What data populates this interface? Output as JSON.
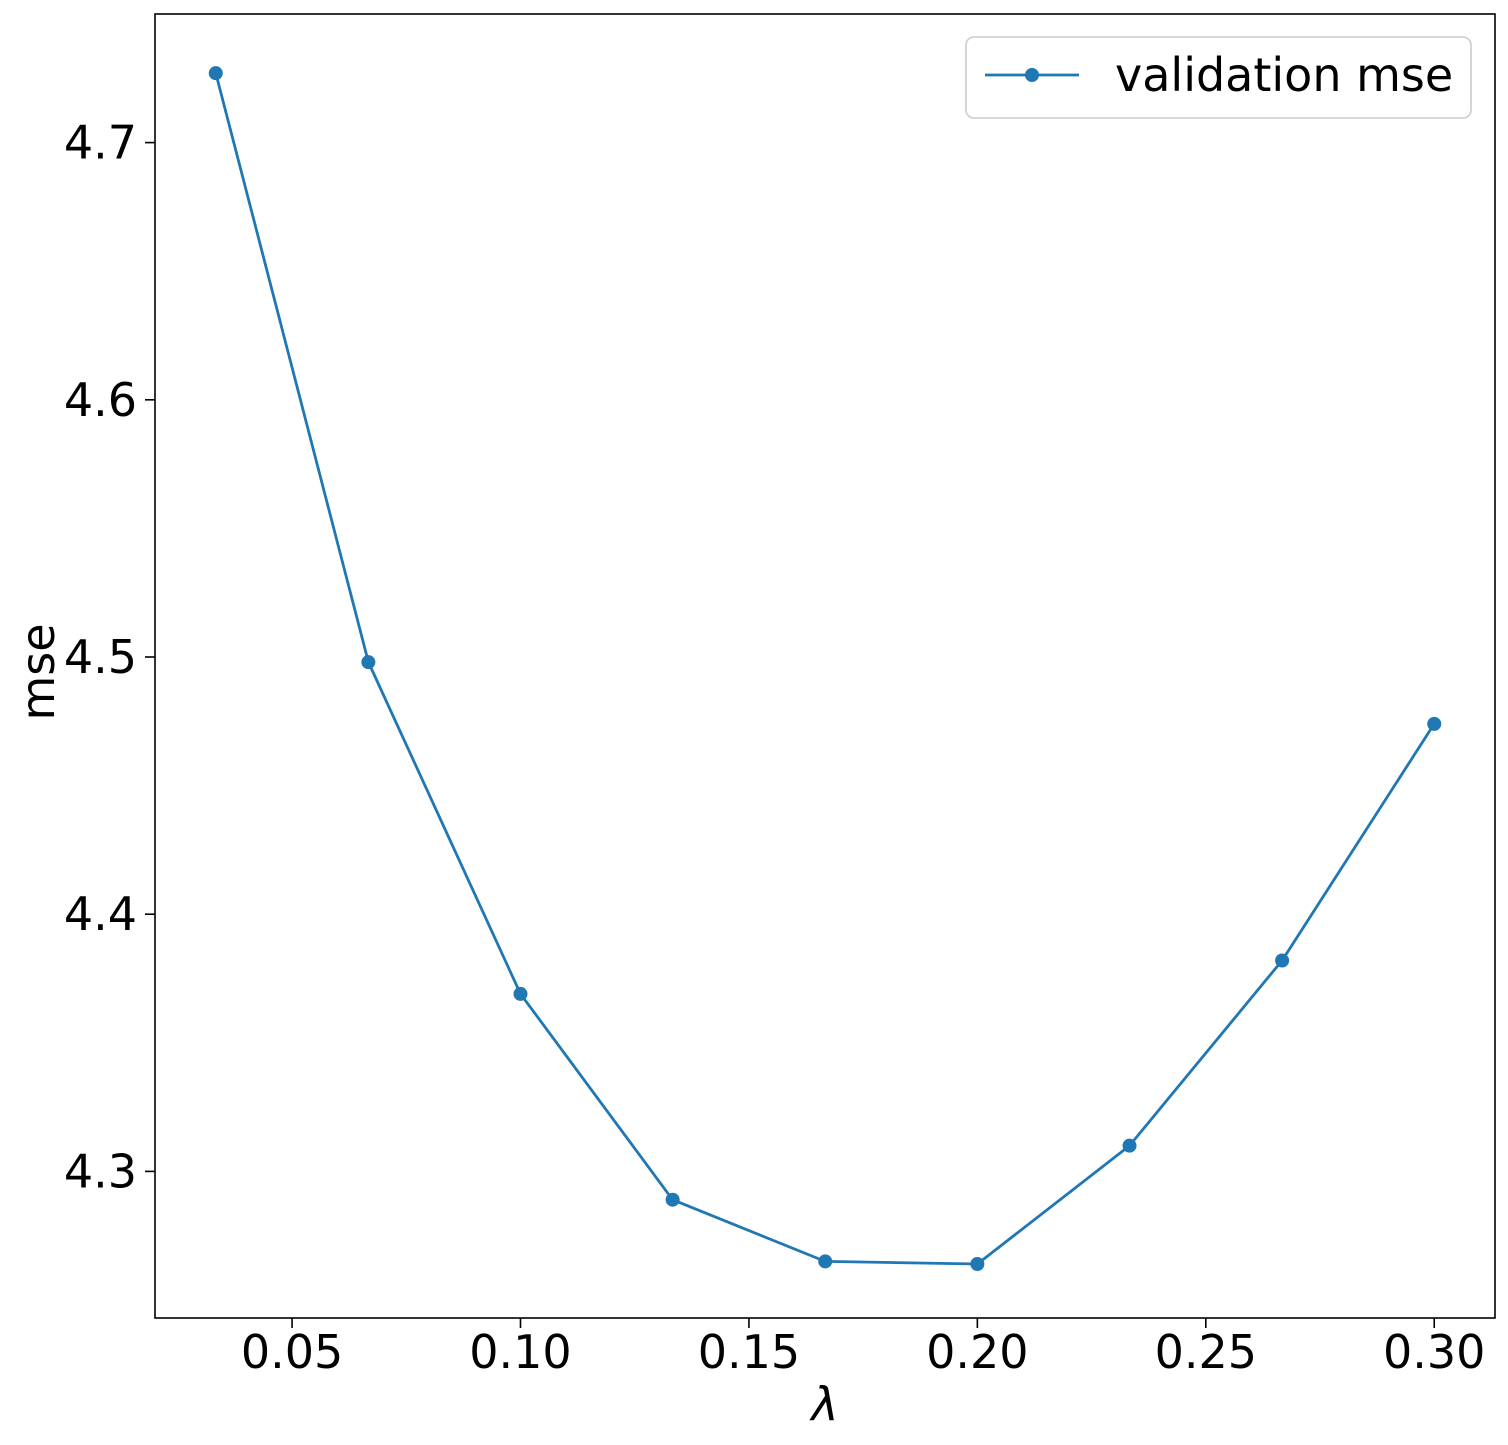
{
  "chart_data": {
    "type": "line",
    "title": "",
    "xlabel": "λ",
    "ylabel": "mse",
    "xlim": [
      0.02,
      0.3133
    ],
    "ylim": [
      4.243,
      4.75
    ],
    "x_ticks": [
      0.05,
      0.1,
      0.15,
      0.2,
      0.25,
      0.3
    ],
    "x_tick_labels": [
      "0.05",
      "0.10",
      "0.15",
      "0.20",
      "0.25",
      "0.30"
    ],
    "y_ticks": [
      4.3,
      4.4,
      4.5,
      4.6,
      4.7
    ],
    "y_tick_labels": [
      "4.3",
      "4.4",
      "4.5",
      "4.6",
      "4.7"
    ],
    "grid": false,
    "legend_position": "top-right",
    "series": [
      {
        "name": "validation mse",
        "color": "#1f77b4",
        "marker": "circle",
        "x": [
          0.0333,
          0.0667,
          0.1,
          0.1333,
          0.1667,
          0.2,
          0.2333,
          0.2667,
          0.3
        ],
        "y": [
          4.727,
          4.498,
          4.369,
          4.289,
          4.265,
          4.264,
          4.31,
          4.382,
          4.474
        ]
      }
    ]
  }
}
